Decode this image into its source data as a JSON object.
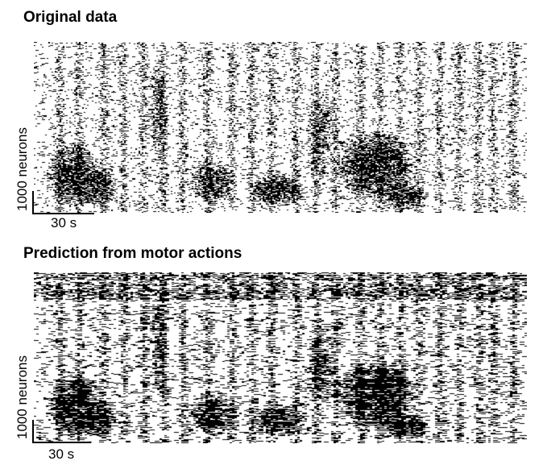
{
  "panels": [
    {
      "title": "Original data",
      "y_scale_label": "1000 neurons",
      "x_scale_label": "30 s",
      "colors": {
        "ink": "#000000",
        "background": "#ffffff"
      },
      "style": "sparse-speckle"
    },
    {
      "title": "Prediction from motor actions",
      "y_scale_label": "1000 neurons",
      "x_scale_label": "30 s",
      "colors": {
        "ink": "#000000",
        "background": "#ffffff"
      },
      "style": "banded-horizontal"
    }
  ]
}
